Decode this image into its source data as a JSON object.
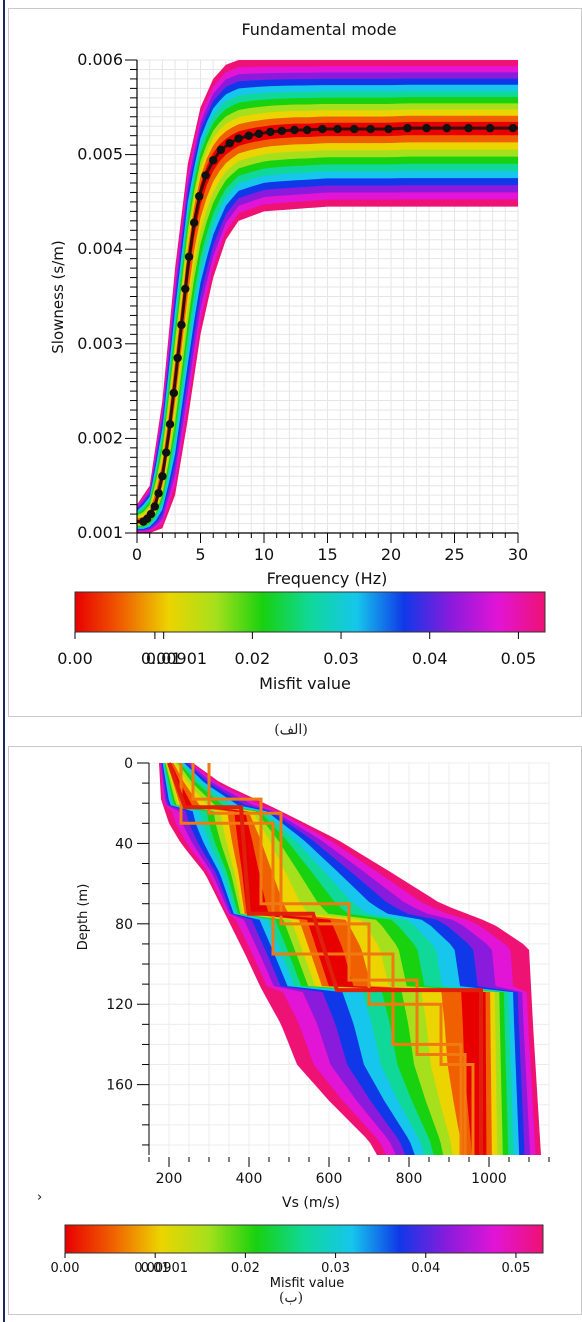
{
  "chart_data": [
    {
      "type": "line",
      "title": "Fundamental mode",
      "xlabel": "Frequency (Hz)",
      "ylabel": "Slowness (s/m)",
      "xlim": [
        0,
        30
      ],
      "ylim": [
        0.001,
        0.006
      ],
      "x_ticks": [
        "0",
        "5",
        "10",
        "15",
        "20",
        "25",
        "30"
      ],
      "y_ticks": [
        "0.001",
        "0.002",
        "0.003",
        "0.004",
        "0.005",
        "0.006"
      ],
      "grid": true,
      "observed_points": {
        "x": [
          0.5,
          0.8,
          1.1,
          1.4,
          1.7,
          2.0,
          2.3,
          2.6,
          2.9,
          3.2,
          3.5,
          3.8,
          4.1,
          4.5,
          4.9,
          5.4,
          6.0,
          6.6,
          7.3,
          8.0,
          8.8,
          9.6,
          10.5,
          11.4,
          12.4,
          13.4,
          14.6,
          15.8,
          17.1,
          18.4,
          19.8,
          21.3,
          22.8,
          24.4,
          26.1,
          27.8,
          29.6
        ],
        "y": [
          0.00112,
          0.00115,
          0.0012,
          0.00128,
          0.00142,
          0.0016,
          0.00185,
          0.00215,
          0.00248,
          0.00285,
          0.0032,
          0.00358,
          0.00392,
          0.00428,
          0.00456,
          0.00478,
          0.00494,
          0.00505,
          0.00512,
          0.00517,
          0.0052,
          0.00522,
          0.00524,
          0.00525,
          0.00526,
          0.00526,
          0.00527,
          0.00527,
          0.00527,
          0.00527,
          0.00527,
          0.00528,
          0.00528,
          0.00528,
          0.00528,
          0.00528,
          0.00528
        ]
      },
      "ensemble_envelope": {
        "x": [
          0,
          1,
          2,
          3,
          4,
          5,
          6,
          7,
          8,
          10,
          15,
          20,
          25,
          30
        ],
        "upper": [
          0.0013,
          0.0015,
          0.0024,
          0.0038,
          0.0049,
          0.0055,
          0.0058,
          0.00595,
          0.006,
          0.006,
          0.006,
          0.006,
          0.006,
          0.006
        ],
        "lower": [
          0.001,
          0.001,
          0.00105,
          0.0014,
          0.0022,
          0.0031,
          0.0037,
          0.0041,
          0.0043,
          0.0044,
          0.00445,
          0.00445,
          0.00445,
          0.00445
        ]
      },
      "colorbar": {
        "label": "Misfit value",
        "ticks": [
          "0.00",
          "0.01",
          "0.02",
          "0.03",
          "0.04",
          "0.05"
        ],
        "min_label": "0.00901",
        "colors": [
          "#e80000",
          "#f06000",
          "#ecd400",
          "#a6e01c",
          "#18d10f",
          "#0fd899",
          "#16c6ec",
          "#1038e8",
          "#8a1bdc",
          "#e214d6",
          "#ee1274"
        ]
      }
    },
    {
      "type": "line",
      "xlabel": "Vs (m/s)",
      "ylabel": "Depth (m)",
      "xlim": [
        150,
        1150
      ],
      "ylim": [
        0,
        195
      ],
      "y_inverted": true,
      "x_ticks": [
        "200",
        "400",
        "600",
        "800",
        "1000"
      ],
      "y_ticks": [
        "0",
        "40",
        "80",
        "120",
        "160"
      ],
      "grid": true,
      "best_profile": {
        "color": "#e0200a",
        "vs": [
          200,
          240,
          380,
          400,
          560,
          620,
          980,
          980
        ],
        "depth": [
          0,
          22,
          22,
          75,
          75,
          113,
          113,
          195
        ]
      },
      "envelope": {
        "left_vs": [
          175,
          180,
          200,
          230,
          290,
          340,
          390,
          430,
          480,
          520,
          600,
          650,
          700,
          720
        ],
        "left_depth": [
          0,
          18,
          30,
          40,
          55,
          75,
          95,
          112,
          130,
          150,
          168,
          178,
          188,
          195
        ],
        "right_vs": [
          260,
          330,
          460,
          620,
          760,
          880,
          1010,
          1100,
          1110,
          1130
        ],
        "right_depth": [
          0,
          10,
          22,
          38,
          55,
          70,
          80,
          92,
          130,
          195
        ]
      },
      "colorbar": {
        "label": "Misfit value",
        "ticks": [
          "0.00",
          "0.01",
          "0.02",
          "0.03",
          "0.04",
          "0.05"
        ],
        "min_label": "0.00901",
        "colors": [
          "#e80000",
          "#f06000",
          "#ecd400",
          "#a6e01c",
          "#18d10f",
          "#0fd899",
          "#16c6ec",
          "#1038e8",
          "#8a1bdc",
          "#e214d6",
          "#ee1274"
        ]
      }
    }
  ],
  "captions": {
    "top": "(الف)",
    "bottom": "(ب)"
  },
  "side_mark": "›"
}
